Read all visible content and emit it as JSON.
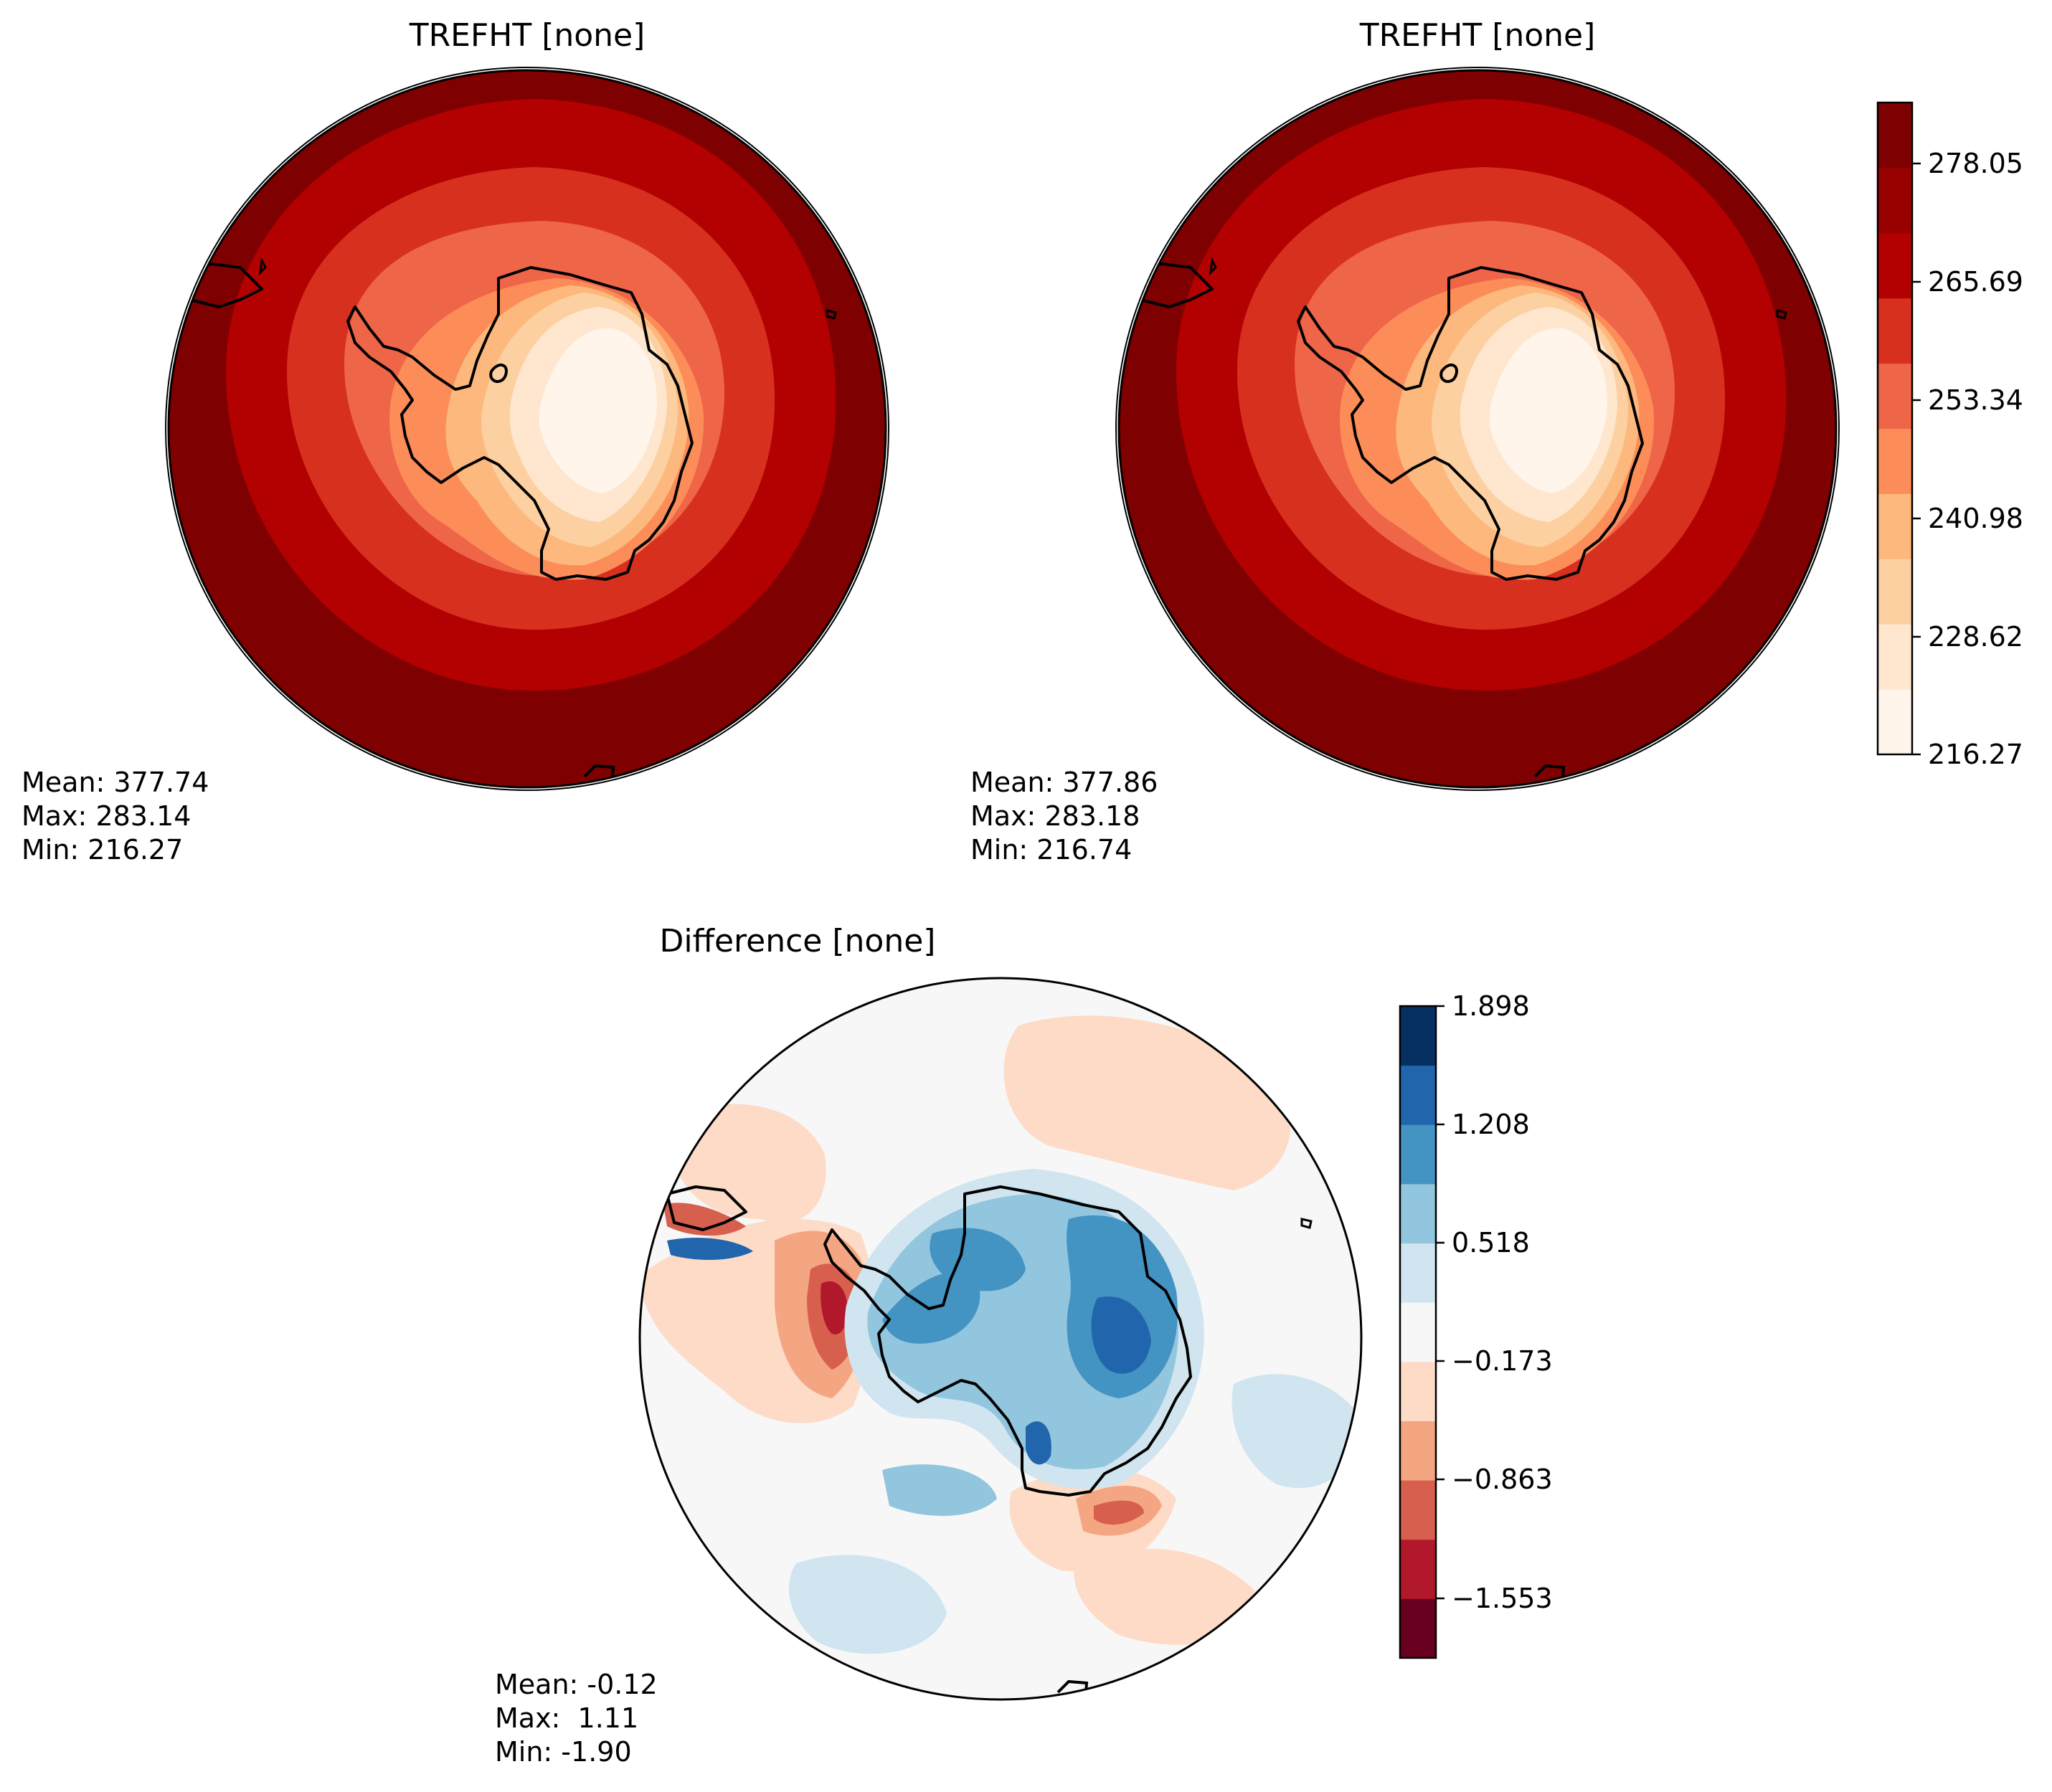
{
  "panels": [
    {
      "title": "TREFHT [none]",
      "stats": [
        "Mean: 377.74",
        "Max: 283.14",
        "Min: 216.27"
      ]
    },
    {
      "title": "TREFHT [none]",
      "stats": [
        "Mean: 377.86",
        "Max: 283.18",
        "Min: 216.74"
      ]
    },
    {
      "title": "Difference [none]",
      "stats": [
        "Mean: -0.12",
        "Max:  1.11",
        "Min: -1.90"
      ]
    }
  ],
  "colorbars": {
    "temperature": {
      "ticks": [
        "278.05",
        "265.69",
        "253.34",
        "240.98",
        "228.62",
        "216.27"
      ],
      "colors": [
        "#fff5eb",
        "#fee6cf",
        "#fdd0a2",
        "#fdb97d",
        "#fc8d59",
        "#ef6548",
        "#d7301f",
        "#b30000",
        "#990000",
        "#7f0000"
      ]
    },
    "difference": {
      "ticks": [
        "1.898",
        "1.208",
        "0.518",
        "−0.173",
        "−0.863",
        "−1.553"
      ],
      "colors": [
        "#67001f",
        "#b2182b",
        "#d6604d",
        "#f4a582",
        "#fddbc7",
        "#f7f7f7",
        "#d1e5f0",
        "#92c5de",
        "#4393c3",
        "#2166ac",
        "#053061"
      ]
    }
  },
  "chart_data": [
    {
      "type": "heatmap",
      "title": "TREFHT [none]",
      "mean": 377.74,
      "max": 283.14,
      "min": 216.27
    },
    {
      "type": "heatmap",
      "title": "TREFHT [none]",
      "mean": 377.86,
      "max": 283.18,
      "min": 216.74
    },
    {
      "type": "heatmap",
      "title": "Difference [none]",
      "mean": -0.12,
      "max": 1.11,
      "min": -1.9
    }
  ]
}
